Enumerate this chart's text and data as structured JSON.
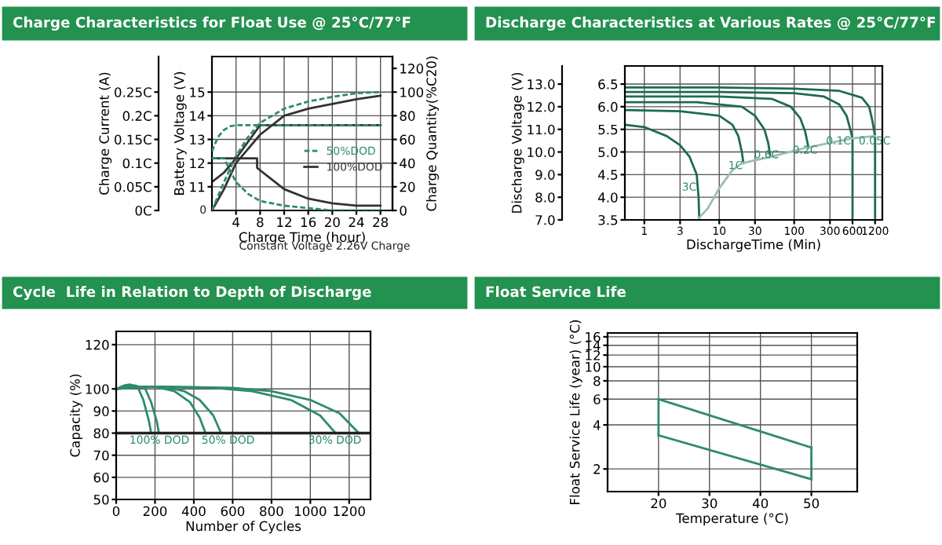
{
  "chart_data": [
    {
      "type": "line",
      "title": "Charge Characteristics for Float Use @ 25°C/77°F",
      "xlabel": "Charge Time (hour)",
      "ylabel": "Battery Voltage (V)",
      "y3label": "Charge Current (A)",
      "y2label": "Charge Quantity(%C20)",
      "annotations": [
        "0",
        "Constant Voltage 2.26V Charge"
      ],
      "xlim": [
        0,
        30
      ],
      "xticks": [
        4,
        8,
        12,
        16,
        20,
        24,
        28
      ],
      "ylim": [
        10,
        16.5
      ],
      "yticks": [
        11,
        12,
        13,
        14,
        15
      ],
      "y3lim": [
        0,
        0.325
      ],
      "y3ticks": [
        {
          "value": 0,
          "label": "0C"
        },
        {
          "value": 0.05,
          "label": "0.05C"
        },
        {
          "value": 0.1,
          "label": "0.1C"
        },
        {
          "value": 0.15,
          "label": "0.15C"
        },
        {
          "value": 0.2,
          "label": "0.2C"
        },
        {
          "value": 0.25,
          "label": "0.25C"
        }
      ],
      "y2lim": [
        0,
        130
      ],
      "y2ticks": [
        0,
        20,
        40,
        60,
        80,
        100,
        120
      ],
      "grid": true,
      "legend": "right",
      "marker": "none",
      "series": [
        {
          "name": "50%DOD",
          "color": "#2e8b6e",
          "line_style": "dashed",
          "x": [
            0,
            1,
            2,
            3,
            4,
            28
          ],
          "values": [
            12.5,
            13.1,
            13.4,
            13.55,
            13.6,
            13.6
          ]
        },
        {
          "name": "100%DOD",
          "color": "#333333",
          "line_style": "solid",
          "x": [
            0,
            2,
            4,
            6,
            8,
            28
          ],
          "values": [
            11.2,
            11.6,
            12.2,
            12.9,
            13.6,
            13.6
          ]
        },
        {
          "color": "#2e8b6e",
          "line_style": "dashed",
          "axis": "y2",
          "x": [
            0,
            2,
            4,
            6,
            8,
            12,
            16,
            20,
            24,
            28
          ],
          "values": [
            0,
            24,
            46,
            62,
            74,
            86,
            92,
            96,
            99,
            100
          ]
        },
        {
          "color": "#333333",
          "line_style": "solid",
          "axis": "y2",
          "x": [
            0,
            2,
            4,
            6,
            8,
            12,
            16,
            20,
            24,
            28
          ],
          "values": [
            0,
            18,
            40,
            52,
            64,
            80,
            86,
            90,
            94,
            97
          ]
        },
        {
          "color": "#2e8b6e",
          "line_style": "dashed",
          "axis": "y3",
          "x": [
            0,
            2,
            3,
            4,
            6,
            8,
            12,
            16,
            20,
            24,
            28
          ],
          "values": [
            0.11,
            0.11,
            0.085,
            0.06,
            0.035,
            0.02,
            0.01,
            0.005,
            0,
            0,
            0
          ]
        },
        {
          "color": "#333333",
          "line_style": "solid",
          "axis": "y3",
          "x": [
            0,
            7.5,
            7.5,
            10,
            12,
            16,
            20,
            24,
            28
          ],
          "values": [
            0.11,
            0.11,
            0.09,
            0.065,
            0.045,
            0.025,
            0.015,
            0.01,
            0.01
          ]
        }
      ]
    },
    {
      "type": "line",
      "title": "Discharge Characteristics at Various Rates @ 25°C/77°F",
      "xlabel": "DischargeTime (Min)",
      "ylabel": "Discharge Voltage (V)",
      "log": "x",
      "xlim": [
        0.55,
        1500
      ],
      "xticks": [
        1,
        3,
        10,
        30,
        100,
        300,
        600,
        1200
      ],
      "ylim": [
        7,
        13.8
      ],
      "yticks": [
        {
          "value": 7,
          "label": "7.0"
        },
        {
          "value": 8,
          "label": "8.0"
        },
        {
          "value": 9,
          "label": "9.0"
        },
        {
          "value": 10,
          "label": "10.0"
        },
        {
          "value": 11,
          "label": "11.0"
        },
        {
          "value": 12,
          "label": "12.0"
        },
        {
          "value": 13,
          "label": "13.0"
        }
      ],
      "y2lim": [
        3.5,
        6.9
      ],
      "y2ticks": [
        3.5,
        {
          "value": 4,
          "label": "4.0"
        },
        4.5,
        {
          "value": 5,
          "label": "5.0"
        },
        5.5,
        {
          "value": 6,
          "label": "6.0"
        },
        6.5
      ],
      "grid": true,
      "marker": "none",
      "line_style": "solid",
      "annotations": [
        "3C",
        "1C",
        "0.6C",
        "0.2C",
        "0.1C",
        "0.05C"
      ],
      "series": [
        {
          "color": "#1f6b4f",
          "x": [
            0.55,
            10,
            100,
            400,
            800,
            1000,
            1100,
            1200,
            1200
          ],
          "values": [
            12.85,
            12.85,
            12.8,
            12.7,
            12.4,
            12.0,
            11.4,
            10.7,
            7.0
          ]
        },
        {
          "color": "#1f6b4f",
          "x": [
            0.55,
            10,
            100,
            250,
            400,
            500,
            560,
            600,
            600
          ],
          "values": [
            12.65,
            12.65,
            12.6,
            12.45,
            12.1,
            11.6,
            11.0,
            10.6,
            7.0
          ]
        },
        {
          "color": "#1f6b4f",
          "x": [
            0.55,
            10,
            50,
            90,
            120,
            140,
            155
          ],
          "values": [
            12.45,
            12.45,
            12.35,
            12.0,
            11.5,
            10.9,
            10.2
          ]
        },
        {
          "color": "#1f6b4f",
          "x": [
            0.55,
            5,
            20,
            30,
            40,
            45,
            48
          ],
          "values": [
            12.2,
            12.2,
            12.0,
            11.6,
            11.0,
            10.4,
            9.8
          ]
        },
        {
          "color": "#1f6b4f",
          "x": [
            0.55,
            3,
            10,
            15,
            18,
            20,
            21
          ],
          "values": [
            11.85,
            11.8,
            11.6,
            11.2,
            10.7,
            10.0,
            9.5
          ]
        },
        {
          "color": "#1f6b4f",
          "x": [
            0.55,
            1,
            2,
            3,
            4,
            5,
            5.3,
            5.4
          ],
          "values": [
            11.2,
            11.1,
            10.7,
            10.3,
            9.8,
            9.0,
            8.0,
            7.1
          ]
        },
        {
          "color": "#9bbfae",
          "x": [
            5.4,
            7,
            10,
            15,
            20,
            50,
            150,
            600,
            1200
          ],
          "values": [
            7.1,
            7.5,
            8.4,
            9.2,
            9.5,
            9.8,
            10.2,
            10.6,
            10.7
          ]
        }
      ]
    },
    {
      "type": "line",
      "title": "Cycle  Life in Relation to Depth of Discharge",
      "xlabel": "Number of Cycles",
      "ylabel": "Capacity (%)",
      "xlim": [
        0,
        1310
      ],
      "xticks": [
        0,
        200,
        400,
        600,
        800,
        1000,
        1200
      ],
      "ylim": [
        50,
        126
      ],
      "yticks": [
        50,
        60,
        70,
        80,
        90,
        100,
        120
      ],
      "grid": true,
      "marker": "none",
      "line_style": "solid",
      "ref_lines": [
        {
          "axis": "y",
          "value": 80,
          "color": "#222222"
        }
      ],
      "annotations": [
        "100% DOD",
        "50% DOD",
        "30% DOD"
      ],
      "series": [
        {
          "color": "#2e8b6e",
          "x": [
            0,
            40,
            70,
            110,
            140,
            170,
            180
          ],
          "values": [
            100,
            101.5,
            102,
            101,
            95,
            85,
            80
          ]
        },
        {
          "color": "#2e8b6e",
          "x": [
            0,
            50,
            100,
            150,
            180,
            210,
            220
          ],
          "values": [
            100,
            101,
            101.5,
            100,
            94,
            85,
            80
          ]
        },
        {
          "color": "#2e8b6e",
          "x": [
            0,
            100,
            200,
            300,
            380,
            430,
            460
          ],
          "values": [
            100,
            101,
            101,
            99,
            94,
            87,
            80
          ]
        },
        {
          "color": "#2e8b6e",
          "x": [
            0,
            100,
            250,
            350,
            430,
            500,
            540
          ],
          "values": [
            100,
            101,
            101,
            99,
            95,
            88,
            80
          ]
        },
        {
          "color": "#2e8b6e",
          "x": [
            0,
            200,
            500,
            700,
            900,
            1050,
            1130
          ],
          "values": [
            100,
            101,
            100.5,
            99,
            95,
            88,
            80
          ]
        },
        {
          "color": "#2e8b6e",
          "x": [
            0,
            200,
            600,
            800,
            1000,
            1150,
            1250
          ],
          "values": [
            100,
            101,
            100.5,
            99,
            95,
            89,
            80
          ]
        }
      ]
    },
    {
      "type": "line",
      "title": "Float Service Life",
      "xlabel": "Temperature (°C)",
      "ylabel": "Float Service Life (year) (°C)",
      "log": "y",
      "xlim": [
        10,
        59
      ],
      "xticks": [
        20,
        30,
        40,
        50
      ],
      "ylim": [
        1.4,
        17
      ],
      "yticks": [
        2,
        4,
        6,
        8,
        10,
        12,
        14,
        16
      ],
      "grid": true,
      "marker": "none",
      "line_style": "solid",
      "series": [
        {
          "color": "#2e8b6e",
          "x": [
            20,
            50
          ],
          "values": [
            6,
            2.8
          ]
        },
        {
          "color": "#2e8b6e",
          "x": [
            20,
            50
          ],
          "values": [
            3.4,
            1.7
          ]
        },
        {
          "color": "#2e8b6e",
          "x": [
            20,
            20
          ],
          "values": [
            3.4,
            6
          ]
        },
        {
          "color": "#2e8b6e",
          "x": [
            50,
            50
          ],
          "values": [
            1.7,
            2.8
          ]
        }
      ]
    }
  ]
}
